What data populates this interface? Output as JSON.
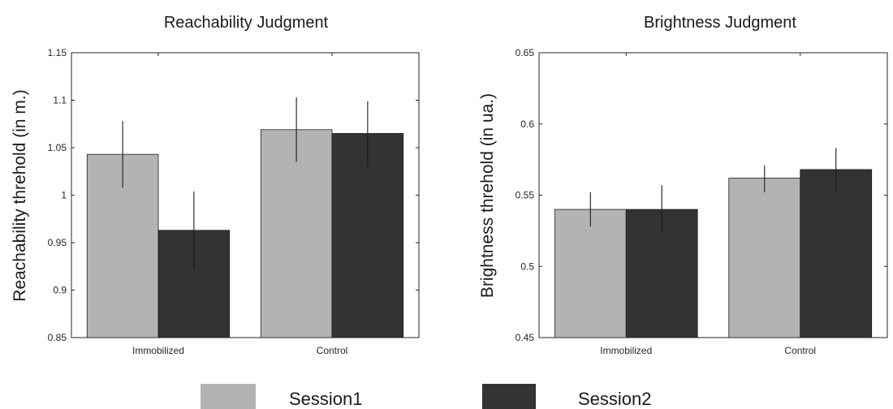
{
  "chart_data": [
    {
      "type": "bar",
      "title": "Reachability Judgment",
      "xlabel": "",
      "ylabel": "Reachability threhold  (in m.)",
      "categories": [
        "Immobilized",
        "Control"
      ],
      "ylim": [
        0.85,
        1.15
      ],
      "yticks": [
        "0.85",
        "0.9",
        "0.95",
        "1",
        "1.05",
        "1.1",
        "1.15"
      ],
      "series": [
        {
          "name": "Session1",
          "values": [
            1.043,
            1.069
          ],
          "err_low": [
            1.008,
            1.035
          ],
          "err_high": [
            1.078,
            1.103
          ]
        },
        {
          "name": "Session2",
          "values": [
            0.963,
            1.065
          ],
          "err_low": [
            0.922,
            1.03
          ],
          "err_high": [
            1.004,
            1.099
          ]
        }
      ]
    },
    {
      "type": "bar",
      "title": "Brightness Judgment",
      "xlabel": "",
      "ylabel": "Brightness threhold  (in ua.)",
      "categories": [
        "Immobilized",
        "Control"
      ],
      "ylim": [
        0.45,
        0.65
      ],
      "yticks": [
        "0.45",
        "0.5",
        "0.55",
        "0.6",
        "0.65"
      ],
      "series": [
        {
          "name": "Session1",
          "values": [
            0.54,
            0.562
          ],
          "err_low": [
            0.528,
            0.552
          ],
          "err_high": [
            0.552,
            0.571
          ]
        },
        {
          "name": "Session2",
          "values": [
            0.54,
            0.568
          ],
          "err_low": [
            0.524,
            0.553
          ],
          "err_high": [
            0.557,
            0.583
          ]
        }
      ]
    }
  ],
  "legend": {
    "items": [
      {
        "label": "Session1",
        "color": "#b3b3b3"
      },
      {
        "label": "Session2",
        "color": "#333333"
      }
    ]
  },
  "colors": {
    "session1": "#b3b3b3",
    "session2": "#333333",
    "error_bar": "#1a1a1a",
    "axis": "#262626"
  }
}
